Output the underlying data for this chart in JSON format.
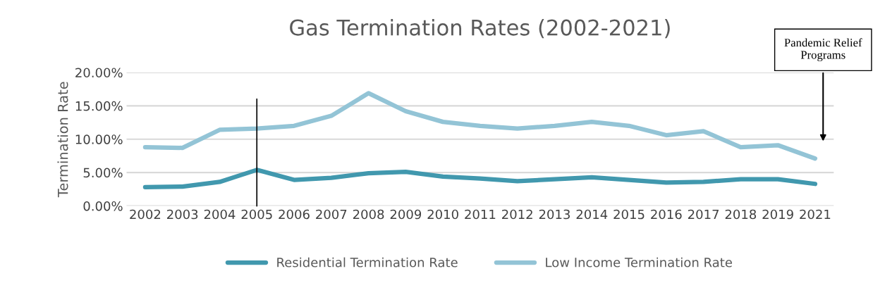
{
  "chart_data": {
    "type": "line",
    "title": "Gas Termination Rates (2002-2021)",
    "ylabel": "Termination Rate",
    "categories": [
      "2002",
      "2003",
      "2004",
      "2005",
      "2006",
      "2007",
      "2008",
      "2009",
      "2010",
      "2011",
      "2012",
      "2013",
      "2014",
      "2015",
      "2016",
      "2017",
      "2018",
      "2019",
      "2021"
    ],
    "series": [
      {
        "name": "Residential Termination Rate",
        "color": "#4198ae",
        "values": [
          2.8,
          2.9,
          3.6,
          5.4,
          3.9,
          4.2,
          4.9,
          5.1,
          4.4,
          4.1,
          3.7,
          4.0,
          4.3,
          3.9,
          3.5,
          3.6,
          4.0,
          4.0,
          3.3
        ]
      },
      {
        "name": "Low Income Termination Rate",
        "color": "#93c4d6",
        "values": [
          8.8,
          8.7,
          11.4,
          11.6,
          12.0,
          13.5,
          16.9,
          14.2,
          12.6,
          12.0,
          11.6,
          12.0,
          12.6,
          12.0,
          10.6,
          11.2,
          8.8,
          9.1,
          7.1
        ]
      }
    ],
    "ylim": [
      0,
      20
    ],
    "yticks": [
      {
        "value": 0,
        "label": "0.00%"
      },
      {
        "value": 5,
        "label": "5.00%"
      },
      {
        "value": 10,
        "label": "10.00%"
      },
      {
        "value": 15,
        "label": "15.00%"
      },
      {
        "value": 20,
        "label": "20.00%"
      }
    ],
    "grid": "y",
    "legend": "bottom",
    "marker": "none",
    "line_style": "solid",
    "ref_lines": [
      {
        "axis": "x",
        "value": "2005",
        "color": "#000000"
      }
    ],
    "annotations": [
      "Pandemic Relief\nPrograms"
    ]
  }
}
